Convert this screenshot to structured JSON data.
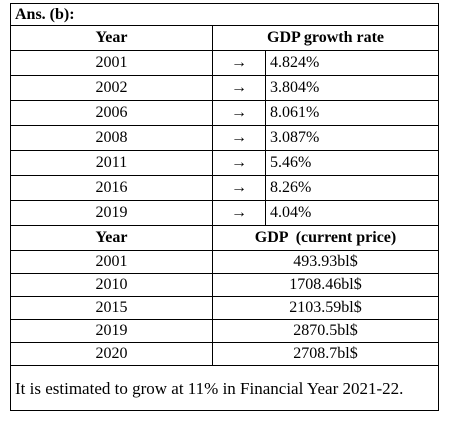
{
  "title": "Ans. (b):",
  "growth": {
    "headers": [
      "Year",
      "GDP growth rate"
    ],
    "rows": [
      [
        "2001",
        "→",
        "4.824%"
      ],
      [
        "2002",
        "→",
        "3.804%"
      ],
      [
        "2006",
        "→",
        "8.061%"
      ],
      [
        "2008",
        "→",
        "3.087%"
      ],
      [
        "2011",
        "→",
        "5.46%"
      ],
      [
        "2016",
        "→",
        "8.26%"
      ],
      [
        "2019",
        "→",
        "4.04%"
      ]
    ]
  },
  "gdp": {
    "headers": [
      "Year",
      "GDP  (current price)"
    ],
    "rows": [
      [
        "2001",
        "493.93bl$"
      ],
      [
        "2010",
        "1708.46bl$"
      ],
      [
        "2015",
        "2103.59bl$"
      ],
      [
        "2019",
        "2870.5bl$"
      ],
      [
        "2020",
        "2708.7bl$"
      ]
    ]
  },
  "note": "It is estimated to grow at 11% in Financial Year 2021-22."
}
